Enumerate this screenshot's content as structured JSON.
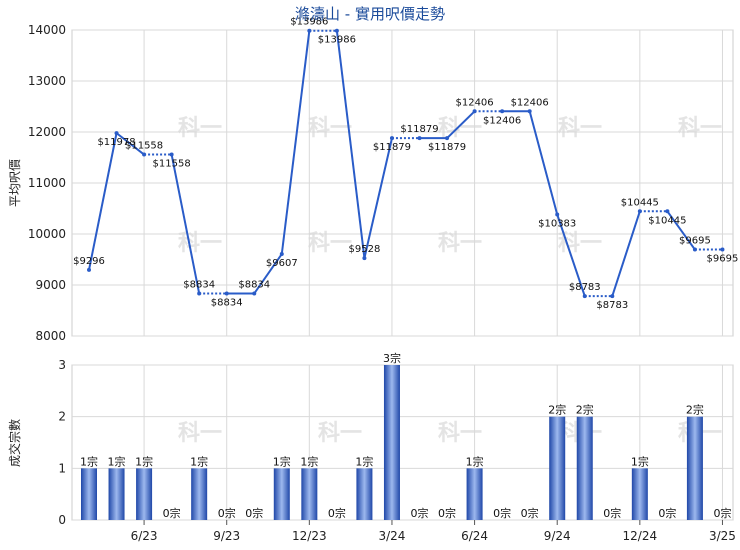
{
  "chart_data": [
    {
      "type": "line",
      "title": "滌濤山 - 實用呎價走勢",
      "ylabel": "平均呎價",
      "ylim": [
        8000,
        14000
      ],
      "yticks": [
        8000,
        9000,
        10000,
        11000,
        12000,
        13000,
        14000
      ],
      "grid": true,
      "series": [
        {
          "values": [
            9296,
            11978,
            11558,
            11558,
            8834,
            8834,
            8834,
            9607,
            13986,
            13986,
            9528,
            11879,
            11879,
            11879,
            12406,
            12406,
            12406,
            10383,
            8783,
            8783,
            10445,
            10445,
            9695,
            9695
          ],
          "labels": [
            "$9296",
            "$11978",
            "$11558",
            "$11558",
            "$8834",
            "$8834",
            "$8834",
            "$9607",
            "$13986",
            "$13986",
            "$9528",
            "$11879",
            "$11879",
            "$11879",
            "$12406",
            "$12406",
            "$12406",
            "$10383",
            "$8783",
            "$8783",
            "$10445",
            "$10445",
            "$9695",
            "$9695"
          ],
          "estimated": [
            false,
            false,
            false,
            true,
            false,
            true,
            false,
            false,
            false,
            true,
            false,
            false,
            true,
            false,
            false,
            true,
            false,
            false,
            false,
            true,
            false,
            true,
            false,
            true
          ]
        }
      ]
    },
    {
      "type": "bar",
      "ylabel": "成交宗數",
      "ylim": [
        0,
        3
      ],
      "yticks": [
        0,
        1,
        2,
        3
      ],
      "grid": true,
      "values": [
        1,
        1,
        1,
        0,
        1,
        0,
        0,
        1,
        1,
        0,
        1,
        3,
        0,
        0,
        1,
        0,
        0,
        2,
        2,
        0,
        1,
        0,
        2,
        0
      ],
      "labels": [
        "1宗",
        "1宗",
        "1宗",
        "0宗",
        "1宗",
        "0宗",
        "0宗",
        "1宗",
        "1宗",
        "0宗",
        "1宗",
        "3宗",
        "0宗",
        "0宗",
        "1宗",
        "0宗",
        "0宗",
        "2宗",
        "2宗",
        "0宗",
        "1宗",
        "0宗",
        "2宗",
        "0宗"
      ]
    }
  ],
  "x_tick_labels": [
    "6/23",
    "9/23",
    "12/23",
    "3/24",
    "6/24",
    "9/24",
    "12/24",
    "3/25"
  ],
  "x_tick_index": [
    2,
    5,
    8,
    11,
    14,
    17,
    20,
    23
  ],
  "watermark_text": "科一",
  "colors": {
    "line": "#2a5cc8",
    "bar_dark": "#1f47a8",
    "bar_light": "#9db8ee",
    "grid": "#d9d9d9",
    "title": "#1a4a9a"
  }
}
